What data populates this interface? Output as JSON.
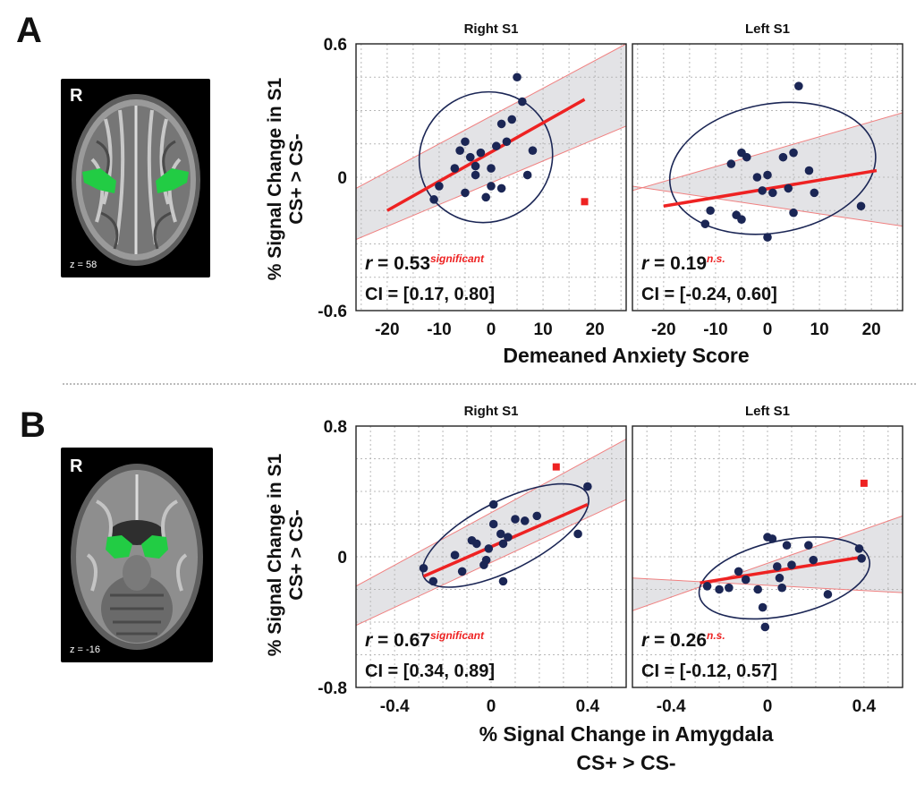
{
  "panel_a": {
    "letter": "A",
    "brain": {
      "orientation": "R",
      "slice": "z = 58"
    },
    "ylabel": "% Signal Change in S1",
    "ylabel2": "CS+ > CS-",
    "xlabel": "Demeaned Anxiety Score"
  },
  "panel_b": {
    "letter": "B",
    "brain": {
      "orientation": "R",
      "slice": "z = -16"
    },
    "ylabel": "% Signal Change in S1",
    "ylabel2": "CS+ > CS-",
    "xlabel": "% Signal Change in Amygdala",
    "xlabel2": "CS+ > CS-"
  },
  "colors": {
    "point": "#1b2655",
    "fit": "#ee2222",
    "outlier": "#ee2222",
    "ci_band": "#d9d9dd",
    "ellipse": "#1b2655"
  },
  "chart_data": [
    {
      "id": "A-right",
      "type": "scatter",
      "title": "Right S1",
      "xlim": [
        -26,
        26
      ],
      "ylim": [
        -0.6,
        0.6
      ],
      "xticks": [
        -20,
        -10,
        0,
        10,
        20
      ],
      "xtick_labels": [
        "-20",
        "-10",
        "0",
        "10",
        "20"
      ],
      "yticks": [
        -0.6,
        0,
        0.6
      ],
      "ytick_labels": [
        "-0.6",
        "0",
        "0.6"
      ],
      "grid_x": [
        -25,
        -20,
        -15,
        -10,
        -5,
        0,
        5,
        10,
        15,
        20,
        25
      ],
      "grid_y": [
        -0.45,
        -0.3,
        -0.15,
        0,
        0.15,
        0.3,
        0.45
      ],
      "points": [
        [
          -11,
          -0.1
        ],
        [
          -10,
          -0.04
        ],
        [
          -7,
          0.04
        ],
        [
          -6,
          0.12
        ],
        [
          -5,
          0.16
        ],
        [
          -5,
          -0.07
        ],
        [
          -4,
          0.09
        ],
        [
          -3,
          0.01
        ],
        [
          -3,
          0.05
        ],
        [
          -2,
          0.11
        ],
        [
          -1,
          -0.09
        ],
        [
          0,
          -0.04
        ],
        [
          0,
          0.04
        ],
        [
          1,
          0.14
        ],
        [
          2,
          -0.05
        ],
        [
          2,
          0.24
        ],
        [
          3,
          0.16
        ],
        [
          4,
          0.26
        ],
        [
          5,
          0.45
        ],
        [
          6,
          0.34
        ],
        [
          7,
          0.01
        ],
        [
          8,
          0.12
        ]
      ],
      "outliers": [
        [
          18,
          -0.11
        ]
      ],
      "fit": [
        [
          -20,
          -0.15
        ],
        [
          18,
          0.35
        ]
      ],
      "ci_upper": [
        [
          -26,
          -0.05
        ],
        [
          26,
          0.6
        ]
      ],
      "ci_lower": [
        [
          -26,
          -0.28
        ],
        [
          26,
          0.23
        ]
      ],
      "ellipse": {
        "cx": -1,
        "cy": 0.09,
        "rx": 13,
        "ry": 0.29,
        "angle_deg": 32
      },
      "stat_label": "r",
      "stat_value": " = 0.53",
      "significance": "significant",
      "ci_text": "CI = [0.17, 0.80]"
    },
    {
      "id": "A-left",
      "type": "scatter",
      "title": "Left S1",
      "xlim": [
        -26,
        26
      ],
      "ylim": [
        -0.6,
        0.6
      ],
      "xticks": [
        -20,
        -10,
        0,
        10,
        20
      ],
      "xtick_labels": [
        "-20",
        "-10",
        "0",
        "10",
        "20"
      ],
      "yticks": [],
      "ytick_labels": [],
      "grid_x": [
        -25,
        -20,
        -15,
        -10,
        -5,
        0,
        5,
        10,
        15,
        20,
        25
      ],
      "grid_y": [
        -0.45,
        -0.3,
        -0.15,
        0,
        0.15,
        0.3,
        0.45
      ],
      "points": [
        [
          -12,
          -0.21
        ],
        [
          -11,
          -0.15
        ],
        [
          -7,
          0.06
        ],
        [
          -6,
          -0.17
        ],
        [
          -5,
          0.11
        ],
        [
          -5,
          -0.19
        ],
        [
          -4,
          0.09
        ],
        [
          -2,
          0.0
        ],
        [
          -1,
          -0.06
        ],
        [
          0,
          -0.27
        ],
        [
          0,
          0.01
        ],
        [
          1,
          -0.07
        ],
        [
          3,
          0.09
        ],
        [
          4,
          -0.05
        ],
        [
          5,
          0.11
        ],
        [
          5,
          -0.16
        ],
        [
          6,
          0.41
        ],
        [
          8,
          0.03
        ],
        [
          9,
          -0.07
        ],
        [
          18,
          -0.13
        ]
      ],
      "outliers": [],
      "fit": [
        [
          -20,
          -0.13
        ],
        [
          21,
          0.03
        ]
      ],
      "ci_upper": [
        [
          -26,
          -0.06
        ],
        [
          26,
          0.29
        ]
      ],
      "ci_lower": [
        [
          -26,
          -0.04
        ],
        [
          26,
          -0.22
        ]
      ],
      "ellipse": {
        "cx": 1,
        "cy": 0.04,
        "rx": 20,
        "ry": 0.29,
        "angle_deg": 10
      },
      "stat_label": "r",
      "stat_value": " = 0.19",
      "significance": "n.s.",
      "ci_text": "CI = [-0.24, 0.60]"
    },
    {
      "id": "B-right",
      "type": "scatter",
      "title": "Right S1",
      "xlim": [
        -0.56,
        0.56
      ],
      "ylim": [
        -0.8,
        0.8
      ],
      "xticks": [
        -0.4,
        0,
        0.4
      ],
      "xtick_labels": [
        "-0.4",
        "0",
        "0.4"
      ],
      "yticks": [
        -0.8,
        0,
        0.8
      ],
      "ytick_labels": [
        "-0.8",
        "0",
        "0.8"
      ],
      "grid_x": [
        -0.5,
        -0.4,
        -0.3,
        -0.2,
        -0.1,
        0,
        0.1,
        0.2,
        0.3,
        0.4,
        0.5
      ],
      "grid_y": [
        -0.6,
        -0.4,
        -0.2,
        0,
        0.2,
        0.4,
        0.6
      ],
      "points": [
        [
          -0.28,
          -0.07
        ],
        [
          -0.24,
          -0.15
        ],
        [
          -0.15,
          0.01
        ],
        [
          -0.12,
          -0.09
        ],
        [
          -0.08,
          0.1
        ],
        [
          -0.06,
          0.08
        ],
        [
          -0.03,
          -0.05
        ],
        [
          -0.02,
          -0.02
        ],
        [
          -0.01,
          0.05
        ],
        [
          0.01,
          0.32
        ],
        [
          0.01,
          0.2
        ],
        [
          0.04,
          0.14
        ],
        [
          0.05,
          0.08
        ],
        [
          0.05,
          -0.15
        ],
        [
          0.07,
          0.12
        ],
        [
          0.1,
          0.23
        ],
        [
          0.14,
          0.22
        ],
        [
          0.19,
          0.25
        ],
        [
          0.36,
          0.14
        ],
        [
          0.4,
          0.43
        ]
      ],
      "outliers": [
        [
          0.27,
          0.55
        ]
      ],
      "fit": [
        [
          -0.28,
          -0.12
        ],
        [
          0.4,
          0.32
        ]
      ],
      "ci_upper": [
        [
          -0.56,
          -0.18
        ],
        [
          0.56,
          0.72
        ]
      ],
      "ci_lower": [
        [
          -0.56,
          -0.42
        ],
        [
          0.56,
          0.35
        ]
      ],
      "ellipse": {
        "cx": 0.06,
        "cy": 0.13,
        "rx": 0.38,
        "ry": 0.21,
        "angle_deg": 27
      },
      "stat_label": "r",
      "stat_value": " = 0.67",
      "significance": "significant",
      "ci_text": "CI = [0.34, 0.89]"
    },
    {
      "id": "B-left",
      "type": "scatter",
      "title": "Left S1",
      "xlim": [
        -0.56,
        0.56
      ],
      "ylim": [
        -0.8,
        0.8
      ],
      "xticks": [
        -0.4,
        0,
        0.4
      ],
      "xtick_labels": [
        "-0.4",
        "0",
        "0.4"
      ],
      "yticks": [],
      "ytick_labels": [],
      "grid_x": [
        -0.5,
        -0.4,
        -0.3,
        -0.2,
        -0.1,
        0,
        0.1,
        0.2,
        0.3,
        0.4,
        0.5
      ],
      "grid_y": [
        -0.6,
        -0.4,
        -0.2,
        0,
        0.2,
        0.4,
        0.6
      ],
      "points": [
        [
          -0.25,
          -0.18
        ],
        [
          -0.2,
          -0.2
        ],
        [
          -0.16,
          -0.19
        ],
        [
          -0.12,
          -0.09
        ],
        [
          -0.09,
          -0.14
        ],
        [
          -0.04,
          -0.2
        ],
        [
          -0.02,
          -0.31
        ],
        [
          -0.01,
          -0.43
        ],
        [
          0.0,
          0.12
        ],
        [
          0.02,
          0.11
        ],
        [
          0.04,
          -0.06
        ],
        [
          0.05,
          -0.13
        ],
        [
          0.06,
          -0.19
        ],
        [
          0.08,
          0.07
        ],
        [
          0.1,
          -0.05
        ],
        [
          0.17,
          0.07
        ],
        [
          0.19,
          -0.02
        ],
        [
          0.25,
          -0.23
        ],
        [
          0.38,
          0.05
        ],
        [
          0.39,
          -0.01
        ]
      ],
      "outliers": [
        [
          0.4,
          0.45
        ]
      ],
      "fit": [
        [
          -0.28,
          -0.16
        ],
        [
          0.4,
          0.0
        ]
      ],
      "ci_upper": [
        [
          -0.56,
          -0.33
        ],
        [
          0.56,
          0.25
        ]
      ],
      "ci_lower": [
        [
          -0.56,
          -0.13
        ],
        [
          0.56,
          -0.22
        ]
      ],
      "ellipse": {
        "cx": 0.07,
        "cy": -0.13,
        "rx": 0.36,
        "ry": 0.23,
        "angle_deg": 12
      },
      "stat_label": "r",
      "stat_value": " = 0.26",
      "significance": "n.s.",
      "ci_text": "CI = [-0.12, 0.57]"
    }
  ]
}
